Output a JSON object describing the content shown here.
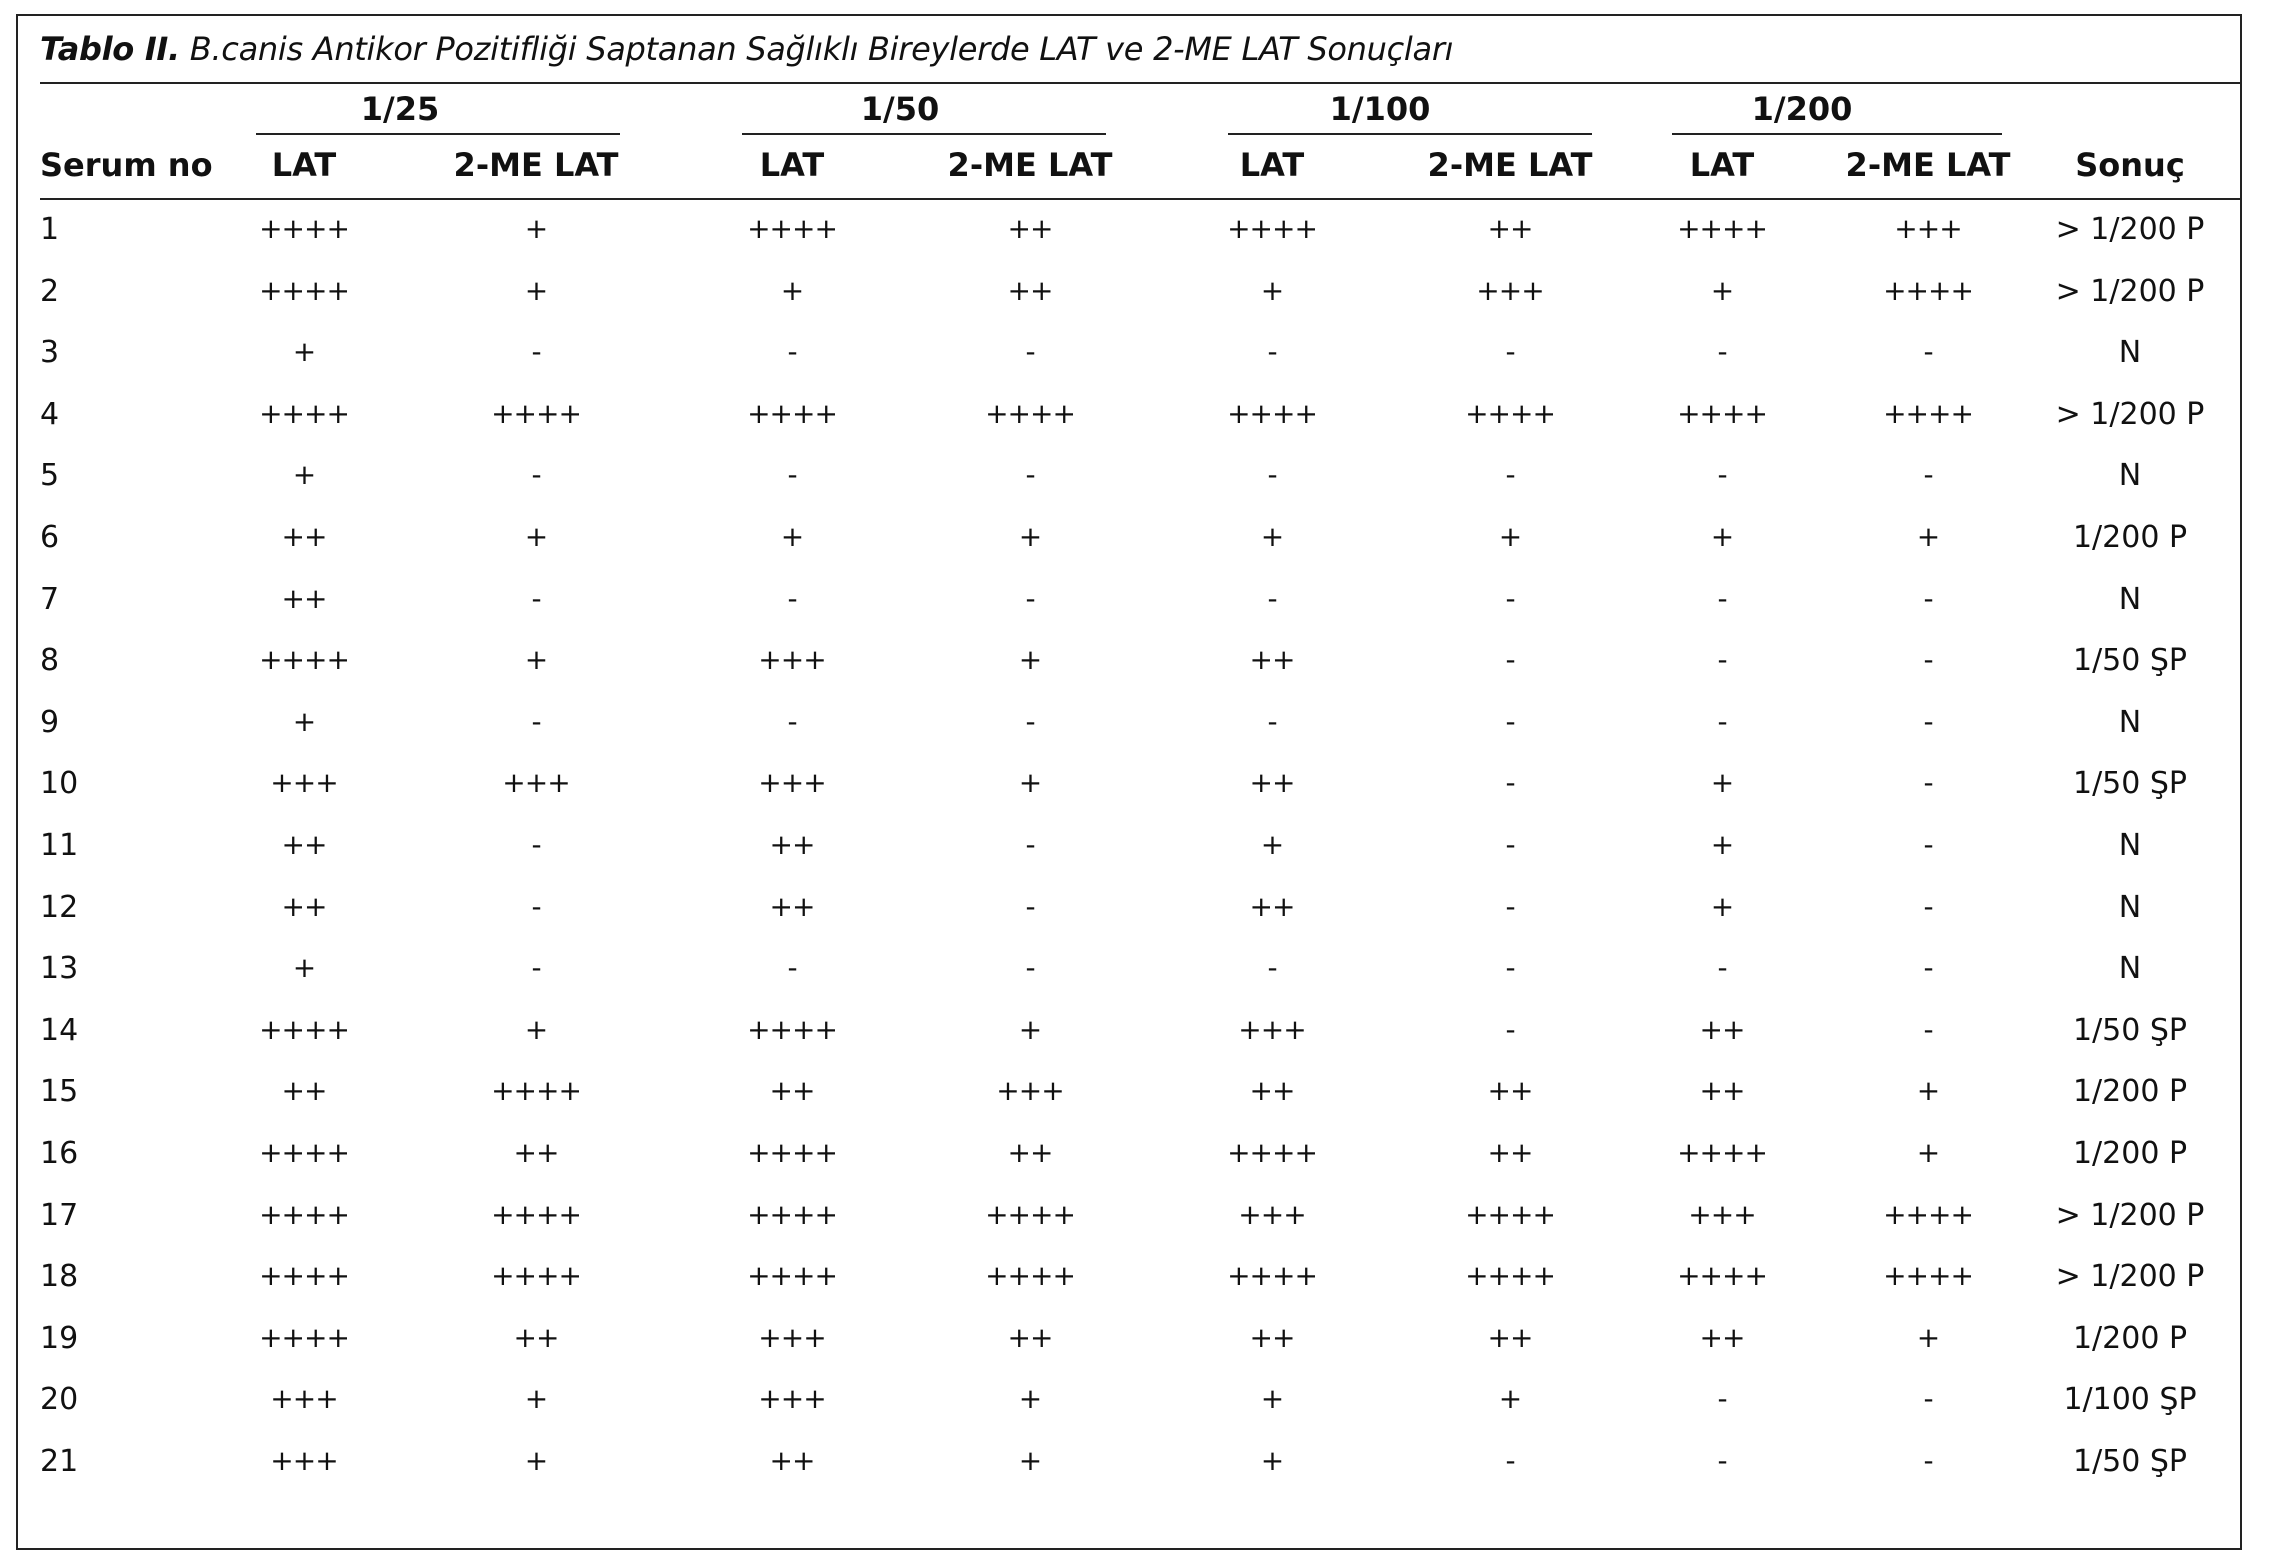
{
  "caption": {
    "label": "Tablo II.",
    "text": " B.canis Antikor Pozitifliği Saptanan Sağlıklı Bireylerde LAT ve 2-ME LAT Sonuçları"
  },
  "header": {
    "serum": "Serum no",
    "dilutions": [
      "1/25",
      "1/50",
      "1/100",
      "1/200"
    ],
    "lat": "LAT",
    "me_lat": "2-ME LAT",
    "result": "Sonuç"
  },
  "rows": [
    {
      "no": "1",
      "cells": [
        "++++",
        "+",
        "++++",
        "++",
        "++++",
        "++",
        "++++",
        "+++"
      ],
      "result": "> 1/200 P"
    },
    {
      "no": "2",
      "cells": [
        "++++",
        "+",
        "+",
        "++",
        "+",
        "+++",
        "+",
        "++++"
      ],
      "result": "> 1/200 P"
    },
    {
      "no": "3",
      "cells": [
        "+",
        "-",
        "-",
        "-",
        "-",
        "-",
        "-",
        "-"
      ],
      "result": "N"
    },
    {
      "no": "4",
      "cells": [
        "++++",
        "++++",
        "++++",
        "++++",
        "++++",
        "++++",
        "++++",
        "++++"
      ],
      "result": "> 1/200 P"
    },
    {
      "no": "5",
      "cells": [
        "+",
        "-",
        "-",
        "-",
        "-",
        "-",
        "-",
        "-"
      ],
      "result": "N"
    },
    {
      "no": "6",
      "cells": [
        "++",
        "+",
        "+",
        "+",
        "+",
        "+",
        "+",
        "+"
      ],
      "result": "1/200 P"
    },
    {
      "no": "7",
      "cells": [
        "++",
        "-",
        "-",
        "-",
        "-",
        "-",
        "-",
        "-"
      ],
      "result": "N"
    },
    {
      "no": "8",
      "cells": [
        "++++",
        "+",
        "+++",
        "+",
        "++",
        "-",
        "-",
        "-"
      ],
      "result": "1/50 ŞP"
    },
    {
      "no": "9",
      "cells": [
        "+",
        "-",
        "-",
        "-",
        "-",
        "-",
        "-",
        "-"
      ],
      "result": "N"
    },
    {
      "no": "10",
      "cells": [
        "+++",
        "+++",
        "+++",
        "+",
        "++",
        "-",
        "+",
        "-"
      ],
      "result": "1/50 ŞP"
    },
    {
      "no": "11",
      "cells": [
        "++",
        "-",
        "++",
        "-",
        "+",
        "-",
        "+",
        "-"
      ],
      "result": "N"
    },
    {
      "no": "12",
      "cells": [
        "++",
        "-",
        "++",
        "-",
        "++",
        "-",
        "+",
        "-"
      ],
      "result": "N"
    },
    {
      "no": "13",
      "cells": [
        "+",
        "-",
        "-",
        "-",
        "-",
        "-",
        "-",
        "-"
      ],
      "result": "N"
    },
    {
      "no": "14",
      "cells": [
        "++++",
        "+",
        "++++",
        "+",
        "+++",
        "-",
        "++",
        "-"
      ],
      "result": "1/50 ŞP"
    },
    {
      "no": "15",
      "cells": [
        "++",
        "++++",
        "++",
        "+++",
        "++",
        "++",
        "++",
        "+"
      ],
      "result": "1/200 P"
    },
    {
      "no": "16",
      "cells": [
        "++++",
        "++",
        "++++",
        "++",
        "++++",
        "++",
        "++++",
        "+"
      ],
      "result": "1/200 P"
    },
    {
      "no": "17",
      "cells": [
        "++++",
        "++++",
        "++++",
        "++++",
        "+++",
        "++++",
        "+++",
        "++++"
      ],
      "result": "> 1/200 P"
    },
    {
      "no": "18",
      "cells": [
        "++++",
        "++++",
        "++++",
        "++++",
        "++++",
        "++++",
        "++++",
        "++++"
      ],
      "result": "> 1/200 P"
    },
    {
      "no": "19",
      "cells": [
        "++++",
        "++",
        "+++",
        "++",
        "++",
        "++",
        "++",
        "+"
      ],
      "result": "1/200 P"
    },
    {
      "no": "20",
      "cells": [
        "+++",
        "+",
        "+++",
        "+",
        "+",
        "+",
        "-",
        "-"
      ],
      "result": "1/100 ŞP"
    },
    {
      "no": "21",
      "cells": [
        "+++",
        "+",
        "++",
        "+",
        "+",
        "-",
        "-",
        "-"
      ],
      "result": "1/50 ŞP"
    }
  ]
}
